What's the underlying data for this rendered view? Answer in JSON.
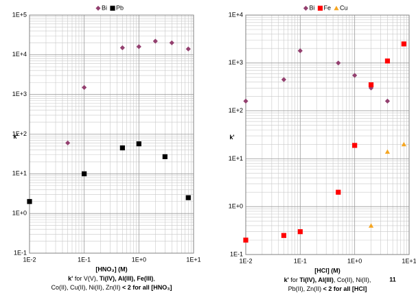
{
  "chart_data": [
    {
      "type": "scatter",
      "xscale": "log",
      "yscale": "log",
      "grid": true,
      "xlabel": "[HNO₃] (M)",
      "ylabel": "k'",
      "xlim": [
        0.01,
        10
      ],
      "ylim": [
        0.1,
        100000
      ],
      "xticks": [
        {
          "value": 0.01,
          "label": "1E-2"
        },
        {
          "value": 0.1,
          "label": "1E-1"
        },
        {
          "value": 1,
          "label": "1E+0"
        },
        {
          "value": 10,
          "label": "1E+1"
        }
      ],
      "yticks": [
        {
          "value": 0.1,
          "label": "1E-1"
        },
        {
          "value": 1,
          "label": "1E+0"
        },
        {
          "value": 10,
          "label": "1E+1"
        },
        {
          "value": 100,
          "label": "1E+2"
        },
        {
          "value": 1000,
          "label": "1E+3"
        },
        {
          "value": 10000,
          "label": "1E+4"
        },
        {
          "value": 100000,
          "label": "1E+5"
        }
      ],
      "legend": "top",
      "series": [
        {
          "name": "Bi",
          "color": "#93406f",
          "marker": "diamond",
          "x": [
            0.05,
            0.1,
            0.5,
            1,
            2,
            4,
            8
          ],
          "values": [
            60,
            1500,
            15000,
            16000,
            22000,
            20000,
            14000
          ]
        },
        {
          "name": "Pb",
          "color": "#000000",
          "marker": "square",
          "x": [
            0.01,
            0.1,
            0.5,
            1,
            3,
            8
          ],
          "values": [
            2,
            10,
            45,
            57,
            27,
            2.5
          ]
        }
      ],
      "caption": [
        [
          {
            "text": "k'",
            "bold": true
          },
          {
            "text": " for V(V), "
          },
          {
            "text": "Ti(IV), Al(III), Fe(III)",
            "bold": true
          },
          {
            "text": ","
          }
        ],
        [
          {
            "text": "Co(II), Cu(II), Ni(II), Zn(II) "
          },
          {
            "text": "< 2 for all [HNO₃]",
            "bold": true
          }
        ]
      ]
    },
    {
      "type": "scatter",
      "xscale": "log",
      "yscale": "log",
      "grid": true,
      "xlabel": "[HCl] (M)",
      "ylabel": "k'",
      "xlim": [
        0.01,
        10
      ],
      "ylim": [
        0.1,
        10000
      ],
      "xticks": [
        {
          "value": 0.01,
          "label": "1E-2"
        },
        {
          "value": 0.1,
          "label": "1E-1"
        },
        {
          "value": 1,
          "label": "1E+0"
        },
        {
          "value": 10,
          "label": "1E+1"
        }
      ],
      "yticks": [
        {
          "value": 0.1,
          "label": "1E-1"
        },
        {
          "value": 1,
          "label": "1E+0"
        },
        {
          "value": 10,
          "label": "1E+1"
        },
        {
          "value": 100,
          "label": "1E+2"
        },
        {
          "value": 1000,
          "label": "1E+3"
        },
        {
          "value": 10000,
          "label": "1E+4"
        }
      ],
      "legend": "top",
      "series": [
        {
          "name": "Bi",
          "color": "#93406f",
          "marker": "diamond",
          "x": [
            0.01,
            0.05,
            0.1,
            0.5,
            1,
            2,
            4
          ],
          "values": [
            160,
            450,
            1800,
            1000,
            550,
            300,
            160
          ]
        },
        {
          "name": "Fe",
          "color": "#ff0000",
          "marker": "square",
          "x": [
            0.01,
            0.05,
            0.1,
            0.5,
            1,
            2,
            4,
            8
          ],
          "values": [
            0.2,
            0.25,
            0.3,
            2,
            19,
            350,
            1100,
            2500
          ]
        },
        {
          "name": "Cu",
          "color": "#f5a623",
          "marker": "triangle",
          "x": [
            2,
            4,
            8
          ],
          "values": [
            0.4,
            14,
            20
          ]
        }
      ],
      "caption": [
        [
          {
            "text": "k'",
            "bold": true
          },
          {
            "text": " for "
          },
          {
            "text": "Ti(IV), Al(III)",
            "bold": true
          },
          {
            "text": ", Co(II), Ni(II),"
          }
        ],
        [
          {
            "text": "Pb(II), Zn(II) "
          },
          {
            "text": "< 2 for all [HCl]",
            "bold": true
          }
        ]
      ]
    }
  ],
  "page_number": "11"
}
